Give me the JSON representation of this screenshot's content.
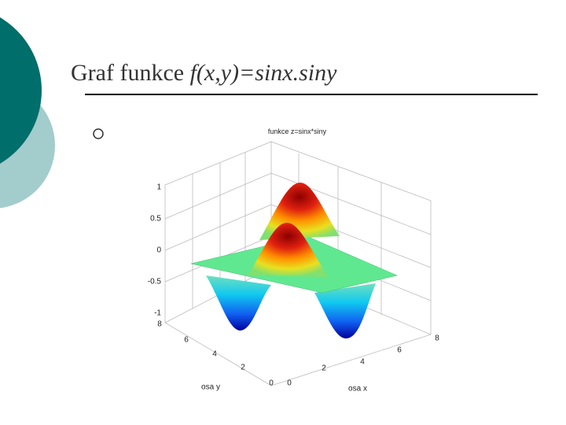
{
  "slide": {
    "title_plain": "Graf funkce ",
    "title_italic": "f(x,y)=sinx.siny",
    "plot": {
      "title": "funkce z=sinx*siny",
      "z_ticks": [
        "1",
        "0.5",
        "0",
        "-0.5",
        "-1"
      ],
      "y_ticks": [
        "8",
        "6",
        "4",
        "2",
        "0"
      ],
      "x_ticks": [
        "0",
        "2",
        "4",
        "6",
        "8"
      ],
      "y_label": "osa y",
      "x_label": "osa x"
    }
  }
}
